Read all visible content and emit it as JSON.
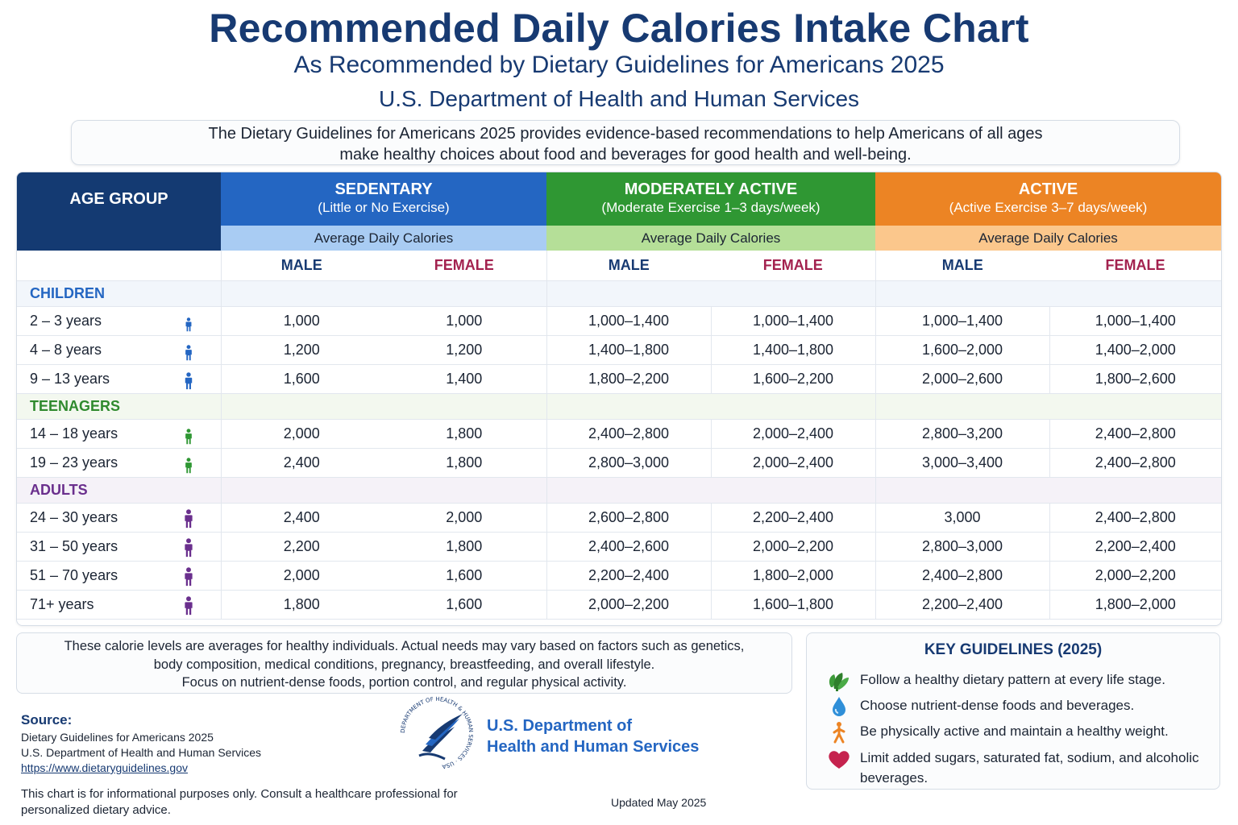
{
  "header": {
    "title": "Recommended Daily Calories Intake Chart",
    "subtitle": "As Recommended by Dietary Guidelines for Americans 2025",
    "agency": "U.S. Department of Health and Human Services"
  },
  "intro": {
    "line1": "The Dietary Guidelines for Americans 2025 provides evidence-based recommendations to help Americans of all ages",
    "line2": "make healthy choices about food and beverages for good health and well-being."
  },
  "table": {
    "age_group_label": "AGE GROUP",
    "levels": [
      {
        "title": "SEDENTARY",
        "sub": "(Little or No Exercise)",
        "avg": "Average Daily Calories",
        "color": "#2466c2"
      },
      {
        "title": "MODERATELY ACTIVE",
        "sub": "(Moderate Exercise 1–3 days/week)",
        "avg": "Average Daily Calories",
        "color": "#2f9733"
      },
      {
        "title": "ACTIVE",
        "sub": "(Active Exercise 3–7 days/week)",
        "avg": "Average Daily Calories",
        "color": "#ec8424"
      }
    ],
    "male_label": "MALE",
    "female_label": "FEMALE",
    "categories": [
      {
        "name": "CHILDREN",
        "rows": [
          {
            "age": "2 – 3 years",
            "values": [
              "1,000",
              "1,000",
              "1,000–1,400",
              "1,000–1,400",
              "1,000–1,400",
              "1,000–1,400"
            ]
          },
          {
            "age": "4 – 8 years",
            "values": [
              "1,200",
              "1,200",
              "1,400–1,800",
              "1,400–1,800",
              "1,600–2,000",
              "1,400–2,000"
            ]
          },
          {
            "age": "9 – 13 years",
            "values": [
              "1,600",
              "1,400",
              "1,800–2,200",
              "1,600–2,200",
              "2,000–2,600",
              "1,800–2,600"
            ]
          }
        ]
      },
      {
        "name": "TEENAGERS",
        "rows": [
          {
            "age": "14 – 18 years",
            "values": [
              "2,000",
              "1,800",
              "2,400–2,800",
              "2,000–2,400",
              "2,800–3,200",
              "2,400–2,800"
            ]
          },
          {
            "age": "19 – 23 years",
            "values": [
              "2,400",
              "1,800",
              "2,800–3,000",
              "2,000–2,400",
              "3,000–3,400",
              "2,400–2,800"
            ]
          }
        ]
      },
      {
        "name": "ADULTS",
        "rows": [
          {
            "age": "24 – 30 years",
            "values": [
              "2,400",
              "2,000",
              "2,600–2,800",
              "2,200–2,400",
              "3,000",
              "2,400–2,800"
            ]
          },
          {
            "age": "31 – 50 years",
            "values": [
              "2,200",
              "1,800",
              "2,400–2,600",
              "2,000–2,200",
              "2,800–3,000",
              "2,200–2,400"
            ]
          },
          {
            "age": "51 – 70 years",
            "values": [
              "2,000",
              "1,600",
              "2,200–2,400",
              "1,800–2,000",
              "2,400–2,800",
              "2,000–2,200"
            ]
          },
          {
            "age": "71+ years",
            "values": [
              "1,800",
              "1,600",
              "2,000–2,200",
              "1,600–1,800",
              "2,200–2,400",
              "1,800–2,000"
            ]
          }
        ]
      }
    ],
    "icon_colors": {
      "children": "#2466c2",
      "teen": "#2f9733",
      "adult": "#6a2f8d"
    }
  },
  "notes": {
    "line1": "These calorie levels are averages for healthy individuals. Actual needs may vary based on factors such as genetics,",
    "line2": "body composition, medical conditions, pregnancy, breastfeeding, and overall lifestyle.",
    "line3": "Focus on nutrient-dense foods, portion control, and regular physical activity."
  },
  "key_guidelines": {
    "title": "KEY GUIDELINES (2025)",
    "items": [
      {
        "icon": "vegetables-icon",
        "text": "Follow a healthy dietary pattern at every life stage."
      },
      {
        "icon": "water-drop-icon",
        "text": "Choose nutrient-dense foods and beverages."
      },
      {
        "icon": "running-person-icon",
        "text": "Be physically active and maintain a healthy weight."
      },
      {
        "icon": "heart-icon",
        "text": "Limit added sugars, saturated fat, sodium, and alcoholic beverages."
      }
    ]
  },
  "source": {
    "heading": "Source:",
    "line1": "Dietary Guidelines for Americans 2025",
    "line2": "U.S. Department of Health and Human Services",
    "link": "https://www.dietaryguidelines.gov"
  },
  "disclaimer": "This chart is for informational purposes only. Consult a healthcare professional for personalized dietary advice.",
  "hhs": {
    "name_line1": "U.S. Department of",
    "name_line2": "Health and Human Services",
    "seal_text": "DEPARTMENT OF HEALTH & HUMAN SERVICES · USA"
  },
  "updated": "Updated May 2025"
}
